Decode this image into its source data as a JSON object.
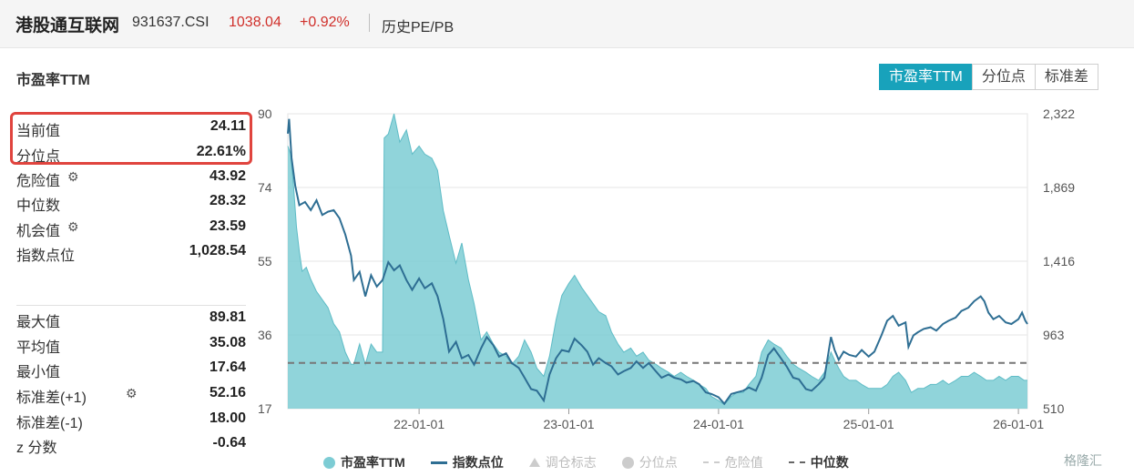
{
  "header": {
    "name": "港股通互联网",
    "code": "931637.CSI",
    "price": "1038.04",
    "change": "+0.92%",
    "link": "历史PE/PB"
  },
  "panel": {
    "title": "市盈率TTM",
    "tabs": [
      "市盈率TTM",
      "分位点",
      "标准差"
    ],
    "active_tab": 0
  },
  "stats": [
    {
      "label": "当前值",
      "value": "24.11",
      "gear": false
    },
    {
      "label": "分位点",
      "value": "22.61%",
      "gear": false
    },
    {
      "label": "危险值",
      "value": "43.92",
      "gear": true
    },
    {
      "label": "中位数",
      "value": "28.32",
      "gear": false
    },
    {
      "label": "机会值",
      "value": "23.59",
      "gear": true
    },
    {
      "label": "指数点位",
      "value": "1,028.54",
      "gear": false
    },
    {
      "label": "最大值",
      "value": "89.81",
      "gear": false
    },
    {
      "label": "平均值",
      "value": "35.08",
      "gear": false
    },
    {
      "label": "最小值",
      "value": "17.64",
      "gear": false
    },
    {
      "label": "标准差(+1)",
      "value": "52.16",
      "gear": true
    },
    {
      "label": "标准差(-1)",
      "value": "18.00",
      "gear": false
    },
    {
      "label": "z 分数",
      "value": "-0.64",
      "gear": false
    }
  ],
  "chart_data": {
    "type": "area",
    "x_ticks": [
      "22-01-01",
      "23-01-01",
      "24-01-01",
      "25-01-01",
      "26-01-01"
    ],
    "xlim": [
      "2021-02-15",
      "2026-01-23"
    ],
    "y_left": {
      "min": 17,
      "max": 90,
      "ticks": [
        "90",
        "74",
        "55",
        "36",
        "17"
      ]
    },
    "y_right": {
      "min": 510,
      "max": 2322,
      "ticks": [
        "2,322",
        "1,869",
        "1,416",
        "963",
        "510"
      ]
    },
    "median": 28.32,
    "series": [
      {
        "name": "市盈率TTM",
        "axis": "left",
        "color": "#7dccd4",
        "points": [
          [
            "2021-02-15",
            82
          ],
          [
            "2021-02-22",
            80
          ],
          [
            "2021-03-01",
            72
          ],
          [
            "2021-03-08",
            62
          ],
          [
            "2021-03-15",
            56
          ],
          [
            "2021-03-22",
            51
          ],
          [
            "2021-04-01",
            52
          ],
          [
            "2021-04-12",
            49
          ],
          [
            "2021-04-26",
            46
          ],
          [
            "2021-05-10",
            44
          ],
          [
            "2021-05-24",
            42
          ],
          [
            "2021-06-07",
            38
          ],
          [
            "2021-06-21",
            36
          ],
          [
            "2021-07-05",
            31
          ],
          [
            "2021-07-19",
            28
          ],
          [
            "2021-07-26",
            28
          ],
          [
            "2021-08-09",
            33
          ],
          [
            "2021-08-23",
            28
          ],
          [
            "2021-09-06",
            33
          ],
          [
            "2021-09-20",
            31
          ],
          [
            "2021-10-04",
            31
          ],
          [
            "2021-10-08",
            84
          ],
          [
            "2021-10-18",
            85
          ],
          [
            "2021-11-01",
            90
          ],
          [
            "2021-11-15",
            83
          ],
          [
            "2021-12-01",
            86
          ],
          [
            "2021-12-15",
            80
          ],
          [
            "2022-01-01",
            82
          ],
          [
            "2022-01-15",
            80
          ],
          [
            "2022-02-01",
            79
          ],
          [
            "2022-02-15",
            76
          ],
          [
            "2022-03-01",
            66
          ],
          [
            "2022-03-15",
            60
          ],
          [
            "2022-04-01",
            53
          ],
          [
            "2022-04-15",
            58
          ],
          [
            "2022-05-01",
            49
          ],
          [
            "2022-05-15",
            43
          ],
          [
            "2022-06-01",
            34
          ],
          [
            "2022-06-15",
            36
          ],
          [
            "2022-07-01",
            33
          ],
          [
            "2022-07-15",
            31
          ],
          [
            "2022-08-01",
            30
          ],
          [
            "2022-08-15",
            28
          ],
          [
            "2022-09-01",
            30
          ],
          [
            "2022-09-15",
            34
          ],
          [
            "2022-10-01",
            31
          ],
          [
            "2022-10-15",
            27
          ],
          [
            "2022-11-01",
            25
          ],
          [
            "2022-11-15",
            30
          ],
          [
            "2022-12-01",
            39
          ],
          [
            "2022-12-15",
            45
          ],
          [
            "2023-01-01",
            48
          ],
          [
            "2023-01-15",
            50
          ],
          [
            "2023-02-01",
            47
          ],
          [
            "2023-02-15",
            45
          ],
          [
            "2023-03-01",
            43
          ],
          [
            "2023-03-15",
            41
          ],
          [
            "2023-04-01",
            40
          ],
          [
            "2023-04-15",
            36
          ],
          [
            "2023-05-01",
            33
          ],
          [
            "2023-05-15",
            31
          ],
          [
            "2023-06-01",
            32
          ],
          [
            "2023-06-15",
            30
          ],
          [
            "2023-07-01",
            31
          ],
          [
            "2023-07-15",
            29
          ],
          [
            "2023-08-01",
            28
          ],
          [
            "2023-08-15",
            27
          ],
          [
            "2023-09-01",
            26
          ],
          [
            "2023-09-15",
            25
          ],
          [
            "2023-10-01",
            26
          ],
          [
            "2023-10-15",
            25
          ],
          [
            "2023-11-01",
            24
          ],
          [
            "2023-11-15",
            23
          ],
          [
            "2023-12-01",
            22
          ],
          [
            "2023-12-15",
            20
          ],
          [
            "2024-01-01",
            19
          ],
          [
            "2024-01-15",
            18
          ],
          [
            "2024-02-01",
            20
          ],
          [
            "2024-02-15",
            21
          ],
          [
            "2024-03-01",
            21
          ],
          [
            "2024-03-15",
            23
          ],
          [
            "2024-04-01",
            25
          ],
          [
            "2024-04-15",
            31
          ],
          [
            "2024-05-01",
            34
          ],
          [
            "2024-05-15",
            33
          ],
          [
            "2024-06-01",
            32
          ],
          [
            "2024-06-15",
            30
          ],
          [
            "2024-07-01",
            28
          ],
          [
            "2024-07-15",
            27
          ],
          [
            "2024-08-01",
            26
          ],
          [
            "2024-08-15",
            25
          ],
          [
            "2024-09-01",
            24
          ],
          [
            "2024-09-15",
            26
          ],
          [
            "2024-10-01",
            31
          ],
          [
            "2024-10-10",
            29
          ],
          [
            "2024-10-20",
            27
          ],
          [
            "2024-11-01",
            25
          ],
          [
            "2024-11-15",
            24
          ],
          [
            "2024-12-01",
            24
          ],
          [
            "2024-12-15",
            23
          ],
          [
            "2025-01-01",
            22
          ],
          [
            "2025-01-15",
            22
          ],
          [
            "2025-02-01",
            22
          ],
          [
            "2025-02-15",
            23
          ],
          [
            "2025-03-01",
            25
          ],
          [
            "2025-03-15",
            26
          ],
          [
            "2025-04-01",
            24
          ],
          [
            "2025-04-15",
            21
          ],
          [
            "2025-05-01",
            22
          ],
          [
            "2025-05-15",
            22
          ],
          [
            "2025-06-01",
            23
          ],
          [
            "2025-06-15",
            23
          ],
          [
            "2025-07-01",
            24
          ],
          [
            "2025-07-15",
            23
          ],
          [
            "2025-08-01",
            24
          ],
          [
            "2025-08-15",
            25
          ],
          [
            "2025-09-01",
            25
          ],
          [
            "2025-09-15",
            26
          ],
          [
            "2025-10-01",
            25
          ],
          [
            "2025-10-15",
            24
          ],
          [
            "2025-11-01",
            24
          ],
          [
            "2025-11-15",
            25
          ],
          [
            "2025-12-01",
            24
          ],
          [
            "2025-12-15",
            25
          ],
          [
            "2026-01-01",
            25
          ],
          [
            "2026-01-15",
            24
          ],
          [
            "2026-01-23",
            24
          ]
        ]
      },
      {
        "name": "指数点位",
        "axis": "right",
        "color": "#2e6e93",
        "points": [
          [
            "2021-02-15",
            2200
          ],
          [
            "2021-02-18",
            2290
          ],
          [
            "2021-02-24",
            2050
          ],
          [
            "2021-03-05",
            1880
          ],
          [
            "2021-03-15",
            1760
          ],
          [
            "2021-03-29",
            1780
          ],
          [
            "2021-04-12",
            1730
          ],
          [
            "2021-04-26",
            1790
          ],
          [
            "2021-05-10",
            1700
          ],
          [
            "2021-05-24",
            1720
          ],
          [
            "2021-06-07",
            1730
          ],
          [
            "2021-06-21",
            1680
          ],
          [
            "2021-07-05",
            1580
          ],
          [
            "2021-07-19",
            1450
          ],
          [
            "2021-07-26",
            1300
          ],
          [
            "2021-08-09",
            1350
          ],
          [
            "2021-08-23",
            1200
          ],
          [
            "2021-09-06",
            1330
          ],
          [
            "2021-09-20",
            1260
          ],
          [
            "2021-10-04",
            1300
          ],
          [
            "2021-10-18",
            1410
          ],
          [
            "2021-11-01",
            1360
          ],
          [
            "2021-11-15",
            1390
          ],
          [
            "2021-12-01",
            1300
          ],
          [
            "2021-12-15",
            1240
          ],
          [
            "2022-01-01",
            1310
          ],
          [
            "2022-01-15",
            1250
          ],
          [
            "2022-02-01",
            1280
          ],
          [
            "2022-02-15",
            1200
          ],
          [
            "2022-03-01",
            1060
          ],
          [
            "2022-03-15",
            860
          ],
          [
            "2022-04-01",
            920
          ],
          [
            "2022-04-15",
            820
          ],
          [
            "2022-05-01",
            840
          ],
          [
            "2022-05-15",
            780
          ],
          [
            "2022-06-01",
            880
          ],
          [
            "2022-06-15",
            950
          ],
          [
            "2022-07-01",
            900
          ],
          [
            "2022-07-15",
            830
          ],
          [
            "2022-08-01",
            850
          ],
          [
            "2022-08-15",
            790
          ],
          [
            "2022-09-01",
            760
          ],
          [
            "2022-09-15",
            700
          ],
          [
            "2022-10-01",
            630
          ],
          [
            "2022-10-15",
            620
          ],
          [
            "2022-11-01",
            560
          ],
          [
            "2022-11-15",
            720
          ],
          [
            "2022-12-01",
            820
          ],
          [
            "2022-12-15",
            870
          ],
          [
            "2023-01-01",
            860
          ],
          [
            "2023-01-15",
            940
          ],
          [
            "2023-02-01",
            900
          ],
          [
            "2023-02-15",
            860
          ],
          [
            "2023-03-01",
            780
          ],
          [
            "2023-03-15",
            820
          ],
          [
            "2023-04-01",
            790
          ],
          [
            "2023-04-15",
            770
          ],
          [
            "2023-05-01",
            720
          ],
          [
            "2023-05-15",
            740
          ],
          [
            "2023-06-01",
            760
          ],
          [
            "2023-06-15",
            800
          ],
          [
            "2023-07-01",
            760
          ],
          [
            "2023-07-15",
            790
          ],
          [
            "2023-08-01",
            740
          ],
          [
            "2023-08-15",
            700
          ],
          [
            "2023-09-01",
            720
          ],
          [
            "2023-09-15",
            700
          ],
          [
            "2023-10-01",
            690
          ],
          [
            "2023-10-15",
            670
          ],
          [
            "2023-11-01",
            680
          ],
          [
            "2023-11-15",
            660
          ],
          [
            "2023-12-01",
            610
          ],
          [
            "2023-12-15",
            600
          ],
          [
            "2024-01-01",
            580
          ],
          [
            "2024-01-15",
            540
          ],
          [
            "2024-02-01",
            600
          ],
          [
            "2024-02-15",
            610
          ],
          [
            "2024-03-01",
            620
          ],
          [
            "2024-03-15",
            640
          ],
          [
            "2024-04-01",
            620
          ],
          [
            "2024-04-15",
            700
          ],
          [
            "2024-05-01",
            840
          ],
          [
            "2024-05-15",
            880
          ],
          [
            "2024-06-01",
            820
          ],
          [
            "2024-06-15",
            770
          ],
          [
            "2024-07-01",
            700
          ],
          [
            "2024-07-15",
            690
          ],
          [
            "2024-08-01",
            630
          ],
          [
            "2024-08-15",
            620
          ],
          [
            "2024-09-01",
            660
          ],
          [
            "2024-09-15",
            700
          ],
          [
            "2024-10-01",
            950
          ],
          [
            "2024-10-10",
            870
          ],
          [
            "2024-10-20",
            810
          ],
          [
            "2024-11-01",
            860
          ],
          [
            "2024-11-15",
            840
          ],
          [
            "2024-12-01",
            830
          ],
          [
            "2024-12-15",
            870
          ],
          [
            "2025-01-01",
            830
          ],
          [
            "2025-01-15",
            860
          ],
          [
            "2025-02-01",
            960
          ],
          [
            "2025-02-15",
            1050
          ],
          [
            "2025-03-01",
            1080
          ],
          [
            "2025-03-15",
            1020
          ],
          [
            "2025-04-01",
            1040
          ],
          [
            "2025-04-08",
            890
          ],
          [
            "2025-04-20",
            960
          ],
          [
            "2025-05-01",
            980
          ],
          [
            "2025-05-15",
            1000
          ],
          [
            "2025-06-01",
            1010
          ],
          [
            "2025-06-15",
            990
          ],
          [
            "2025-07-01",
            1030
          ],
          [
            "2025-07-15",
            1050
          ],
          [
            "2025-08-01",
            1070
          ],
          [
            "2025-08-15",
            1110
          ],
          [
            "2025-09-01",
            1130
          ],
          [
            "2025-09-15",
            1170
          ],
          [
            "2025-10-01",
            1200
          ],
          [
            "2025-10-10",
            1170
          ],
          [
            "2025-10-20",
            1100
          ],
          [
            "2025-11-01",
            1060
          ],
          [
            "2025-11-15",
            1080
          ],
          [
            "2025-12-01",
            1040
          ],
          [
            "2025-12-15",
            1030
          ],
          [
            "2026-01-01",
            1060
          ],
          [
            "2026-01-10",
            1100
          ],
          [
            "2026-01-18",
            1050
          ],
          [
            "2026-01-23",
            1030
          ]
        ]
      }
    ],
    "legend": [
      {
        "label": "市盈率TTM",
        "kind": "dot",
        "color": "#7dccd4"
      },
      {
        "label": "指数点位",
        "kind": "line",
        "color": "#2e6e93"
      },
      {
        "label": "调仓标志",
        "kind": "triangle",
        "color": "#cccccc"
      },
      {
        "label": "分位点",
        "kind": "dot",
        "color": "#cccccc"
      },
      {
        "label": "危险值",
        "kind": "dash",
        "color": "#cccccc"
      },
      {
        "label": "中位数",
        "kind": "dash",
        "color": "#666666"
      }
    ]
  },
  "watermark": "格隆汇"
}
